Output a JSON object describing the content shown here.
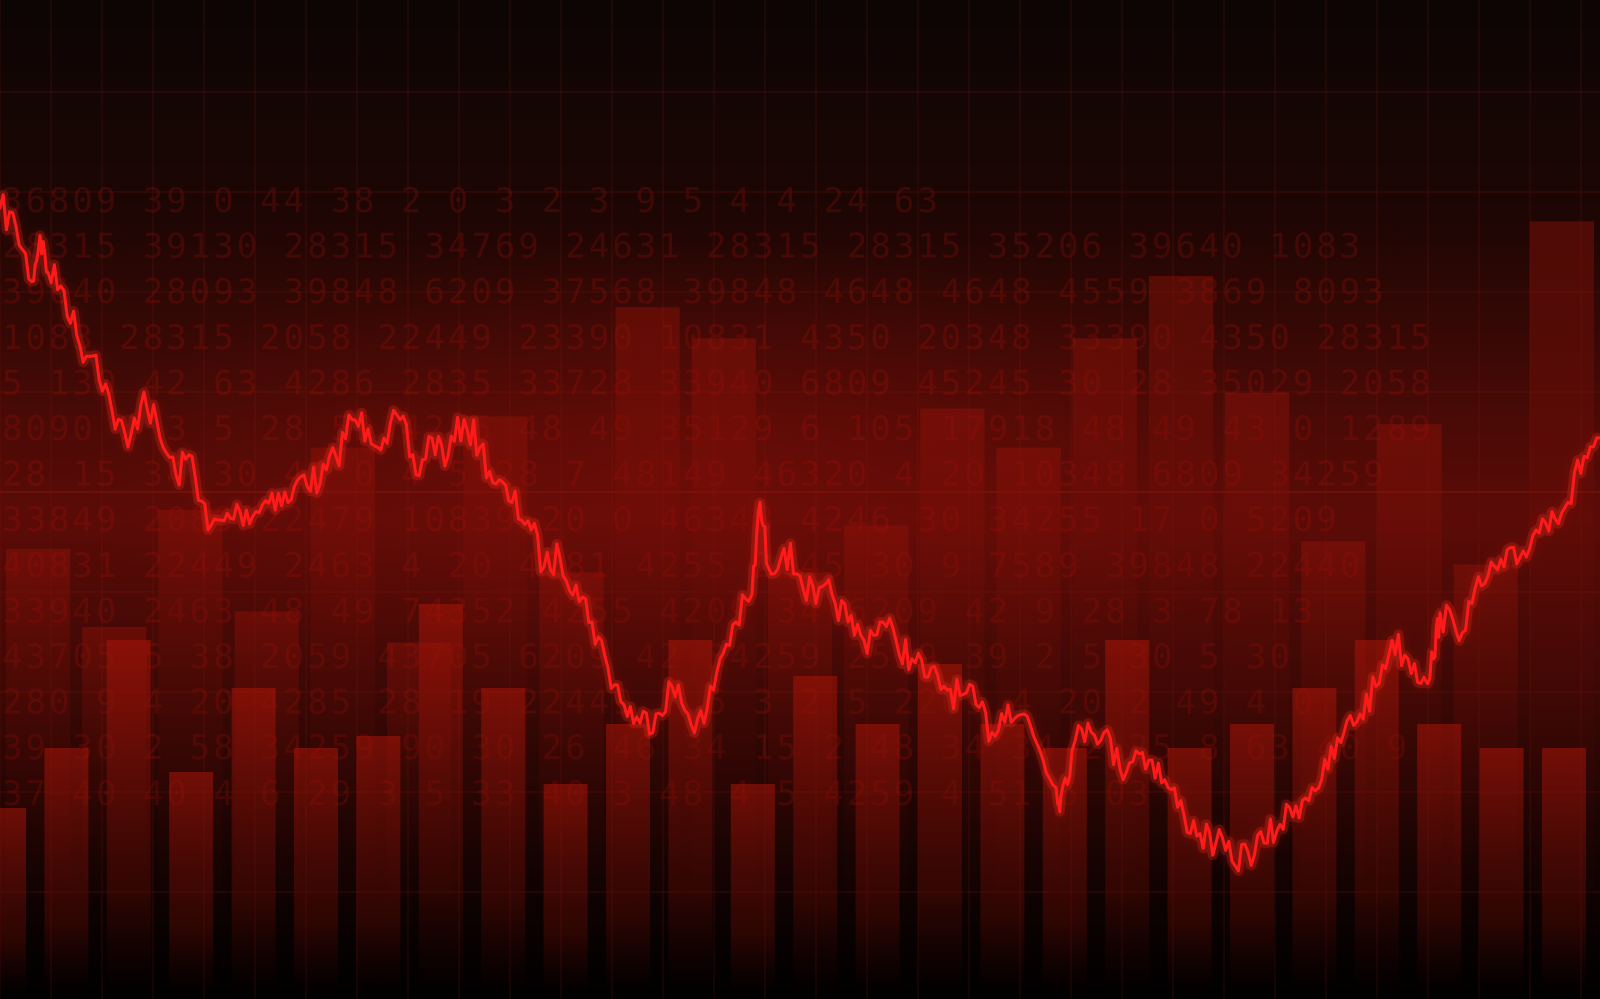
{
  "chart_data": {
    "type": "line",
    "title": "",
    "xlabel": "",
    "ylabel": "",
    "x_range": [
      0,
      100
    ],
    "ylim": [
      0,
      100
    ],
    "grid": true,
    "series": [
      {
        "x": [
          0,
          1,
          2,
          2.5,
          3,
          4,
          5,
          6,
          7,
          8,
          9,
          10,
          11,
          12,
          13,
          14,
          15,
          16,
          17,
          18,
          19,
          20,
          21,
          22,
          23,
          24,
          25,
          26,
          27,
          28,
          29,
          30,
          31,
          32,
          33,
          34,
          35,
          36,
          37,
          38,
          39,
          40,
          41,
          42,
          43,
          44,
          45,
          46,
          47,
          47.5,
          48,
          49,
          50,
          51,
          52,
          53,
          54,
          55,
          56,
          57,
          58,
          59,
          60,
          61,
          62,
          63,
          64,
          65,
          66,
          66.3,
          67,
          68,
          69,
          70,
          71,
          72,
          73,
          74,
          75,
          76,
          77,
          78,
          79,
          80,
          81,
          82,
          83,
          84,
          85,
          86,
          87,
          88,
          89,
          89.6,
          90,
          91,
          92,
          93,
          94,
          95,
          96,
          97,
          98,
          99,
          100
        ],
        "y": [
          85,
          83,
          77,
          82,
          78,
          76,
          70,
          69,
          63,
          59,
          65,
          60,
          56,
          58,
          50,
          51,
          52,
          52,
          54,
          53,
          56,
          55,
          58,
          62,
          61,
          60,
          62,
          56,
          60,
          58,
          62,
          59,
          55,
          53,
          51,
          46,
          47,
          44,
          40,
          35,
          31,
          29,
          30,
          33,
          30,
          29,
          36,
          40,
          43,
          53,
          46,
          48,
          45,
          42,
          43,
          40,
          38,
          40,
          38,
          36,
          34,
          33,
          32,
          31,
          28,
          31,
          30,
          26,
          22,
          21,
          26,
          29,
          28,
          24,
          26,
          25,
          22,
          19,
          17,
          16,
          14,
          15,
          16,
          18,
          20,
          22,
          24,
          28,
          30,
          33,
          38,
          36,
          34,
          36,
          41,
          39,
          42,
          45,
          46,
          47,
          50,
          52,
          53,
          58,
          60
        ]
      }
    ],
    "background_bars": {
      "series": [
        {
          "name": "back",
          "values": [
            45,
            35,
            50,
            37,
            58,
            33,
            62,
            42,
            76,
            72,
            42,
            48,
            63,
            58,
            72,
            80,
            65,
            46,
            61,
            43,
            87
          ]
        },
        {
          "name": "front",
          "values": [
            16,
            21,
            30,
            19,
            26,
            21,
            22,
            33,
            26,
            18,
            23,
            30,
            18,
            27,
            23,
            28,
            23,
            21,
            30,
            21,
            23,
            26,
            30,
            23,
            21,
            21,
            28
          ]
        }
      ]
    },
    "colors": {
      "line": "#ff1a1a",
      "grid": "#8a1a10",
      "digits": "#b41208",
      "bars": "#a81408"
    },
    "background_digits": [
      "36809  39 0   44 38   2 0 3   2 3 9   5 4 4   24 63",
      "28315  39130  28315  34769  24631  28315  28315  35206  39640  1083",
      "39640  28093  39848  6209   37568  39848  4648   4648   4559   3869   8093",
      "1083   28315  2058   22449  23390  10831  4350   20348  33390  4350   28315",
      "5 130  42 63  4286   2835   33728  33940  6809   45245  30 28  35029  2058",
      "8090   2 3 5  28 59  42 5   48 49  35129  6 105  17918  48 49  43 0   1289",
      "28 15  34 30  44 0   4 5    28 7   48149  46320  4 20   10348  6809   34259",
      "33849  2089   22479  10839  20  0  46348  4246   30    34255  17 0   5209",
      "40831  22449  2463   4 20   4281   4255   2545   30  9  7589   39848  22440",
      "33940  2463   48 49  74352  4255   4209   34   6209   42 9   28 3   78 13",
      "43705  5 38   2059   43705  6209   42     34259  2559   39 2   5 30   5 30",
      "280 9  4 20   4285   28 19  22449  7 5 3  2 5    2209   4 20   2 49   4 0",
      "39 30  2 58   34259  90 30  26 46  34 15  2 48   34 34  2 25   8 63   40 9",
      "37 40  40 4   6 29   3 5    33 40  3 48   4 5    4259   4 51   6 03"
    ]
  }
}
